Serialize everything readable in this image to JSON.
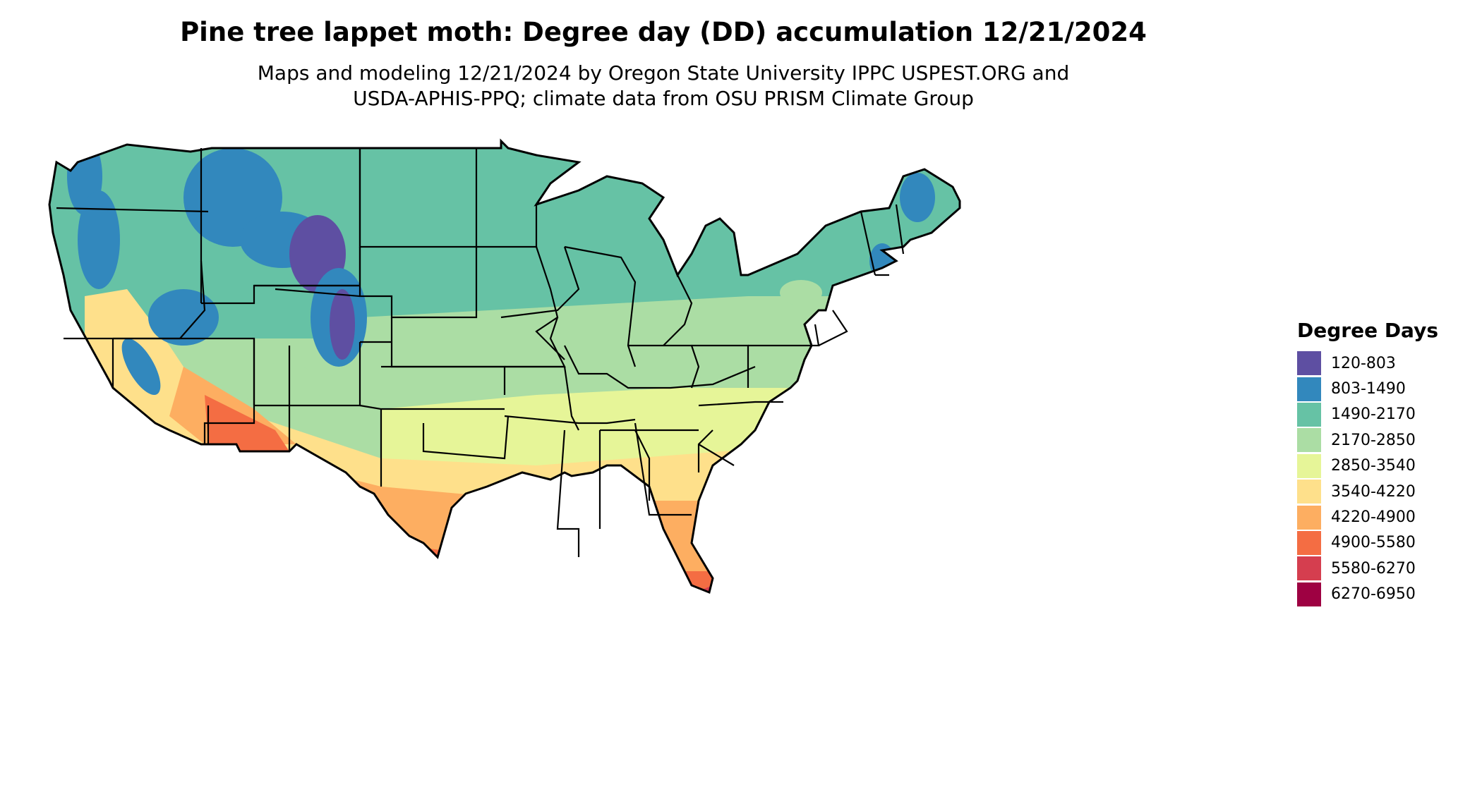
{
  "title": "Pine tree lappet moth: Degree day (DD) accumulation 12/21/2024",
  "subtitle_line1": "Maps and modeling 12/21/2024 by Oregon State University IPPC USPEST.ORG and",
  "subtitle_line2": "USDA-APHIS-PPQ; climate data from OSU PRISM Climate Group",
  "legend": {
    "title": "Degree Days",
    "items": [
      {
        "label": "120-803",
        "color": "#5e4fa2"
      },
      {
        "label": "803-1490",
        "color": "#3288bd"
      },
      {
        "label": "1490-2170",
        "color": "#66c2a5"
      },
      {
        "label": "2170-2850",
        "color": "#abdda4"
      },
      {
        "label": "2850-3540",
        "color": "#e6f598"
      },
      {
        "label": "3540-4220",
        "color": "#fee08b"
      },
      {
        "label": "4220-4900",
        "color": "#fdae61"
      },
      {
        "label": "4900-5580",
        "color": "#f46d43"
      },
      {
        "label": "5580-6270",
        "color": "#d53e4f"
      },
      {
        "label": "6270-6950",
        "color": "#9e0142"
      }
    ]
  }
}
